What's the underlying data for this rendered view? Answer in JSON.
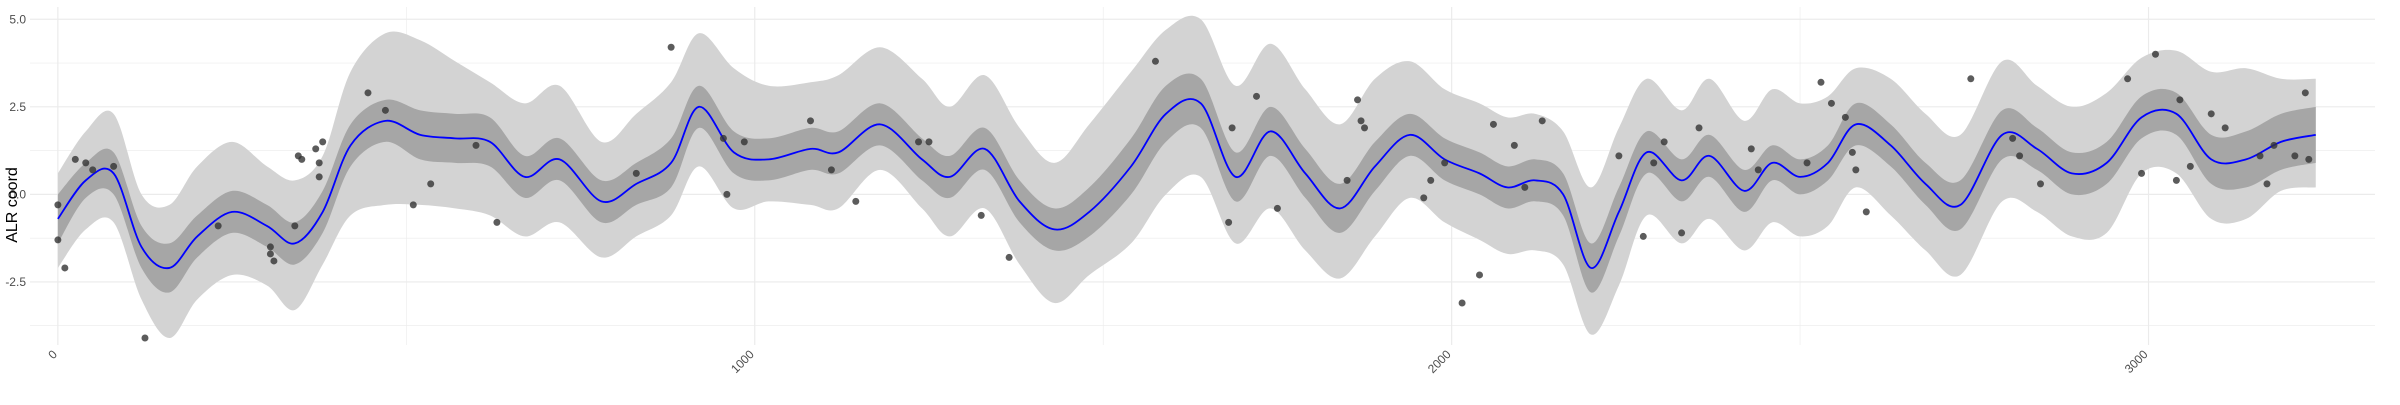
{
  "chart_data": {
    "type": "line",
    "title": "",
    "xlabel": "",
    "ylabel": "ALR coord",
    "xlim": [
      -40,
      3325
    ],
    "ylim": [
      -4.3,
      5.35
    ],
    "x_ticks": [
      0,
      1000,
      2000,
      3000
    ],
    "x_tick_labels": [
      "0",
      "1000",
      "2000",
      "3000"
    ],
    "y_ticks": [
      -2.5,
      0.0,
      2.5,
      5.0
    ],
    "y_tick_labels": [
      "-2.5",
      "0.0",
      "2.5",
      "5.0"
    ],
    "grid": true,
    "colors": {
      "mean_line": "#0000ff",
      "inner_band": "#a6a6a6",
      "outer_band": "#d3d3d3",
      "points": "#333333",
      "grid": "#ebebeb"
    },
    "series": [
      {
        "kind": "line",
        "x": [
          0,
          40,
          80,
          120,
          160,
          200,
          250,
          300,
          340,
          380,
          420,
          470,
          520,
          570,
          620,
          670,
          720,
          780,
          830,
          880,
          920,
          970,
          1020,
          1080,
          1120,
          1180,
          1240,
          1280,
          1330,
          1380,
          1430,
          1480,
          1540,
          1590,
          1640,
          1690,
          1740,
          1790,
          1840,
          1890,
          1940,
          1990,
          2040,
          2080,
          2120,
          2160,
          2200,
          2240,
          2280,
          2330,
          2370,
          2420,
          2460,
          2500,
          2540,
          2580,
          2630,
          2680,
          2730,
          2790,
          2840,
          2890,
          2940,
          2990,
          3040,
          3090,
          3140,
          3190,
          3240
        ],
        "y": [
          -0.7,
          0.4,
          0.6,
          -1.5,
          -2.1,
          -1.2,
          -0.5,
          -0.9,
          -1.4,
          -0.5,
          1.4,
          2.1,
          1.7,
          1.6,
          1.5,
          0.5,
          1.0,
          -0.2,
          0.3,
          0.9,
          2.5,
          1.2,
          1.0,
          1.3,
          1.2,
          2.0,
          1.0,
          0.5,
          1.3,
          -0.2,
          -1.0,
          -0.5,
          0.8,
          2.3,
          2.6,
          0.5,
          1.8,
          0.6,
          -0.4,
          0.8,
          1.7,
          1.0,
          0.6,
          0.2,
          0.4,
          0.0,
          -2.1,
          -0.5,
          1.2,
          0.4,
          1.1,
          0.1,
          0.9,
          0.5,
          0.9,
          2.0,
          1.4,
          0.3,
          -0.3,
          1.7,
          1.3,
          0.6,
          0.9,
          2.2,
          2.3,
          1.0,
          1.0,
          1.5,
          1.7
        ]
      },
      {
        "kind": "band_inner",
        "x": [
          0,
          40,
          80,
          120,
          160,
          200,
          250,
          300,
          340,
          380,
          420,
          470,
          520,
          570,
          620,
          670,
          720,
          780,
          830,
          880,
          920,
          970,
          1020,
          1080,
          1120,
          1180,
          1240,
          1280,
          1330,
          1380,
          1430,
          1480,
          1540,
          1590,
          1640,
          1690,
          1740,
          1790,
          1840,
          1890,
          1940,
          1990,
          2040,
          2080,
          2120,
          2160,
          2200,
          2240,
          2280,
          2330,
          2370,
          2420,
          2460,
          2500,
          2540,
          2580,
          2630,
          2680,
          2730,
          2790,
          2840,
          2890,
          2940,
          2990,
          3040,
          3090,
          3140,
          3190,
          3240
        ],
        "lower": [
          -1.4,
          -0.1,
          0.0,
          -2.1,
          -2.8,
          -1.8,
          -1.1,
          -1.5,
          -2.0,
          -1.1,
          0.8,
          1.5,
          1.0,
          0.9,
          0.8,
          -0.1,
          0.4,
          -0.8,
          -0.3,
          0.2,
          1.9,
          0.6,
          0.4,
          0.7,
          0.6,
          1.4,
          0.4,
          -0.1,
          0.7,
          -0.8,
          -1.6,
          -1.2,
          0.0,
          1.5,
          1.9,
          -0.2,
          1.1,
          -0.1,
          -1.1,
          0.1,
          1.1,
          0.4,
          0.0,
          -0.4,
          -0.2,
          -0.6,
          -2.8,
          -1.2,
          0.6,
          -0.2,
          0.5,
          -0.5,
          0.4,
          0.0,
          0.4,
          1.4,
          0.8,
          -0.3,
          -1.0,
          1.0,
          0.7,
          0.0,
          0.3,
          1.6,
          1.7,
          0.3,
          0.2,
          0.7,
          0.9
        ],
        "upper": [
          0.0,
          0.9,
          1.2,
          -0.9,
          -1.4,
          -0.6,
          0.1,
          -0.3,
          -0.8,
          0.1,
          2.0,
          2.7,
          2.4,
          2.3,
          2.2,
          1.1,
          1.6,
          0.4,
          0.9,
          1.6,
          3.1,
          1.8,
          1.6,
          1.9,
          1.8,
          2.6,
          1.6,
          1.1,
          1.9,
          0.4,
          -0.4,
          0.2,
          1.6,
          3.1,
          3.3,
          1.2,
          2.5,
          1.3,
          0.3,
          1.5,
          2.3,
          1.6,
          1.2,
          0.8,
          1.0,
          0.6,
          -1.4,
          0.2,
          1.8,
          1.0,
          1.7,
          0.7,
          1.4,
          1.0,
          1.4,
          2.6,
          2.0,
          0.9,
          0.4,
          2.4,
          1.9,
          1.2,
          1.5,
          2.8,
          2.9,
          1.7,
          1.8,
          2.3,
          2.5
        ]
      },
      {
        "kind": "band_outer",
        "x": [
          0,
          40,
          80,
          120,
          160,
          200,
          250,
          300,
          340,
          380,
          420,
          470,
          520,
          570,
          620,
          670,
          720,
          780,
          830,
          880,
          920,
          970,
          1020,
          1080,
          1120,
          1180,
          1240,
          1280,
          1330,
          1380,
          1430,
          1480,
          1540,
          1590,
          1640,
          1690,
          1740,
          1790,
          1840,
          1890,
          1940,
          1990,
          2040,
          2080,
          2120,
          2160,
          2200,
          2240,
          2280,
          2330,
          2370,
          2420,
          2460,
          2500,
          2540,
          2580,
          2630,
          2680,
          2730,
          2790,
          2840,
          2890,
          2940,
          2990,
          3040,
          3090,
          3140,
          3190,
          3240
        ],
        "lower": [
          -2.1,
          -1.0,
          -0.8,
          -3.0,
          -4.1,
          -3.0,
          -2.3,
          -2.6,
          -3.3,
          -2.0,
          -0.6,
          -0.3,
          -0.3,
          -0.4,
          -0.6,
          -1.2,
          -0.8,
          -1.8,
          -1.2,
          -0.6,
          0.8,
          -0.4,
          -0.2,
          -0.3,
          -0.4,
          0.7,
          -0.4,
          -1.2,
          -0.4,
          -2.0,
          -3.1,
          -2.3,
          -1.4,
          0.0,
          0.5,
          -1.4,
          -0.4,
          -1.6,
          -2.4,
          -1.2,
          -0.1,
          -0.8,
          -1.3,
          -1.7,
          -1.6,
          -2.0,
          -4.0,
          -2.6,
          -0.6,
          -1.4,
          -0.7,
          -1.6,
          -0.8,
          -1.2,
          -0.9,
          0.2,
          -0.6,
          -1.6,
          -2.3,
          -0.2,
          -0.5,
          -1.2,
          -1.1,
          0.6,
          0.6,
          -0.7,
          -0.7,
          0.1,
          0.2
        ],
        "upper": [
          0.6,
          1.8,
          2.3,
          0.0,
          -0.3,
          0.8,
          1.5,
          0.8,
          0.4,
          1.1,
          3.5,
          4.6,
          4.4,
          3.8,
          3.2,
          2.6,
          3.1,
          1.5,
          2.3,
          3.2,
          4.6,
          3.6,
          3.1,
          3.2,
          3.4,
          4.2,
          3.3,
          2.5,
          3.4,
          1.9,
          0.9,
          2.0,
          3.5,
          4.7,
          5.0,
          3.1,
          4.3,
          3.0,
          2.0,
          3.3,
          3.8,
          3.0,
          2.6,
          2.2,
          2.3,
          1.8,
          0.2,
          1.9,
          3.3,
          2.4,
          3.3,
          2.1,
          3.0,
          2.6,
          2.8,
          3.6,
          3.3,
          2.3,
          1.7,
          3.8,
          3.1,
          2.5,
          2.9,
          3.9,
          4.1,
          3.5,
          3.6,
          3.3,
          3.3
        ]
      },
      {
        "kind": "points",
        "x": [
          0,
          0,
          10,
          25,
          40,
          50,
          80,
          125,
          230,
          305,
          305,
          310,
          340,
          345,
          350,
          370,
          375,
          375,
          380,
          445,
          470,
          510,
          535,
          600,
          630,
          830,
          880,
          955,
          960,
          985,
          1080,
          1110,
          1145,
          1235,
          1250,
          1325,
          1365,
          1575,
          1680,
          1685,
          1720,
          1750,
          1850,
          1865,
          1870,
          1875,
          1960,
          1970,
          1990,
          2015,
          2040,
          2060,
          2090,
          2105,
          2130,
          2240,
          2275,
          2290,
          2305,
          2330,
          2355,
          2430,
          2440,
          2510,
          2530,
          2545,
          2565,
          2575,
          2580,
          2595,
          2745,
          2805,
          2815,
          2845,
          2970,
          2990,
          3010,
          3040,
          3045,
          3060,
          3090,
          3110,
          3160,
          3170,
          3180,
          3210,
          3225,
          3230
        ],
        "y": [
          -0.3,
          -1.3,
          -2.1,
          1.0,
          0.9,
          0.7,
          0.8,
          -4.1,
          -0.9,
          -1.5,
          -1.7,
          -1.9,
          -0.9,
          1.1,
          1.0,
          1.3,
          0.5,
          0.9,
          1.5,
          2.9,
          2.4,
          -0.3,
          0.3,
          1.4,
          -0.8,
          0.6,
          4.2,
          1.6,
          0.0,
          1.5,
          2.1,
          0.7,
          -0.2,
          1.5,
          1.5,
          -0.6,
          -1.8,
          3.8,
          -0.8,
          1.9,
          2.8,
          -0.4,
          0.4,
          2.7,
          2.1,
          1.9,
          -0.1,
          0.4,
          0.9,
          -3.1,
          -2.3,
          2.0,
          1.4,
          0.2,
          2.1,
          1.1,
          -1.2,
          0.9,
          1.5,
          -1.1,
          1.9,
          1.3,
          0.7,
          0.9,
          3.2,
          2.6,
          2.2,
          1.2,
          0.7,
          -0.5,
          3.3,
          1.6,
          1.1,
          0.3,
          3.3,
          0.6,
          4.0,
          0.4,
          2.7,
          0.8,
          2.3,
          1.9,
          1.1,
          0.3,
          1.4,
          1.1,
          2.9,
          1.0
        ]
      }
    ]
  }
}
